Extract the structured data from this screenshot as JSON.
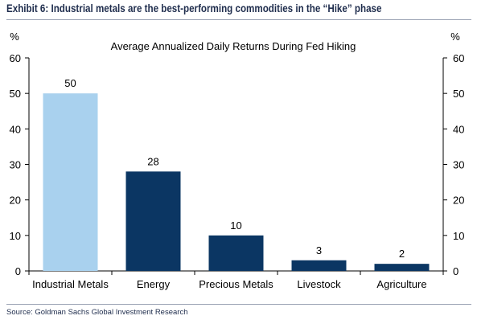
{
  "header": {
    "exhibit_title": "Exhibit 6: Industrial metals are the best-performing commodities in the “Hike” phase"
  },
  "footer": {
    "source": "Source: Goldman Sachs Global Investment Research"
  },
  "chart_data": {
    "type": "bar",
    "title": "Average Annualized Daily Returns During Fed Hiking",
    "categories": [
      "Industrial Metals",
      "Energy",
      "Precious Metals",
      "Livestock",
      "Agriculture"
    ],
    "values": [
      50,
      28,
      10,
      3,
      2
    ],
    "data_labels": [
      "50",
      "28",
      "10",
      "3",
      "2"
    ],
    "bar_colors": [
      "#a9d1ee",
      "#0b3663",
      "#0b3663",
      "#0b3663",
      "#0b3663"
    ],
    "yticks": [
      0,
      10,
      20,
      30,
      40,
      50,
      60
    ],
    "ylim": [
      0,
      60
    ],
    "ylabel_left": "%",
    "ylabel_right": "%",
    "grid": false,
    "legend": "none"
  }
}
